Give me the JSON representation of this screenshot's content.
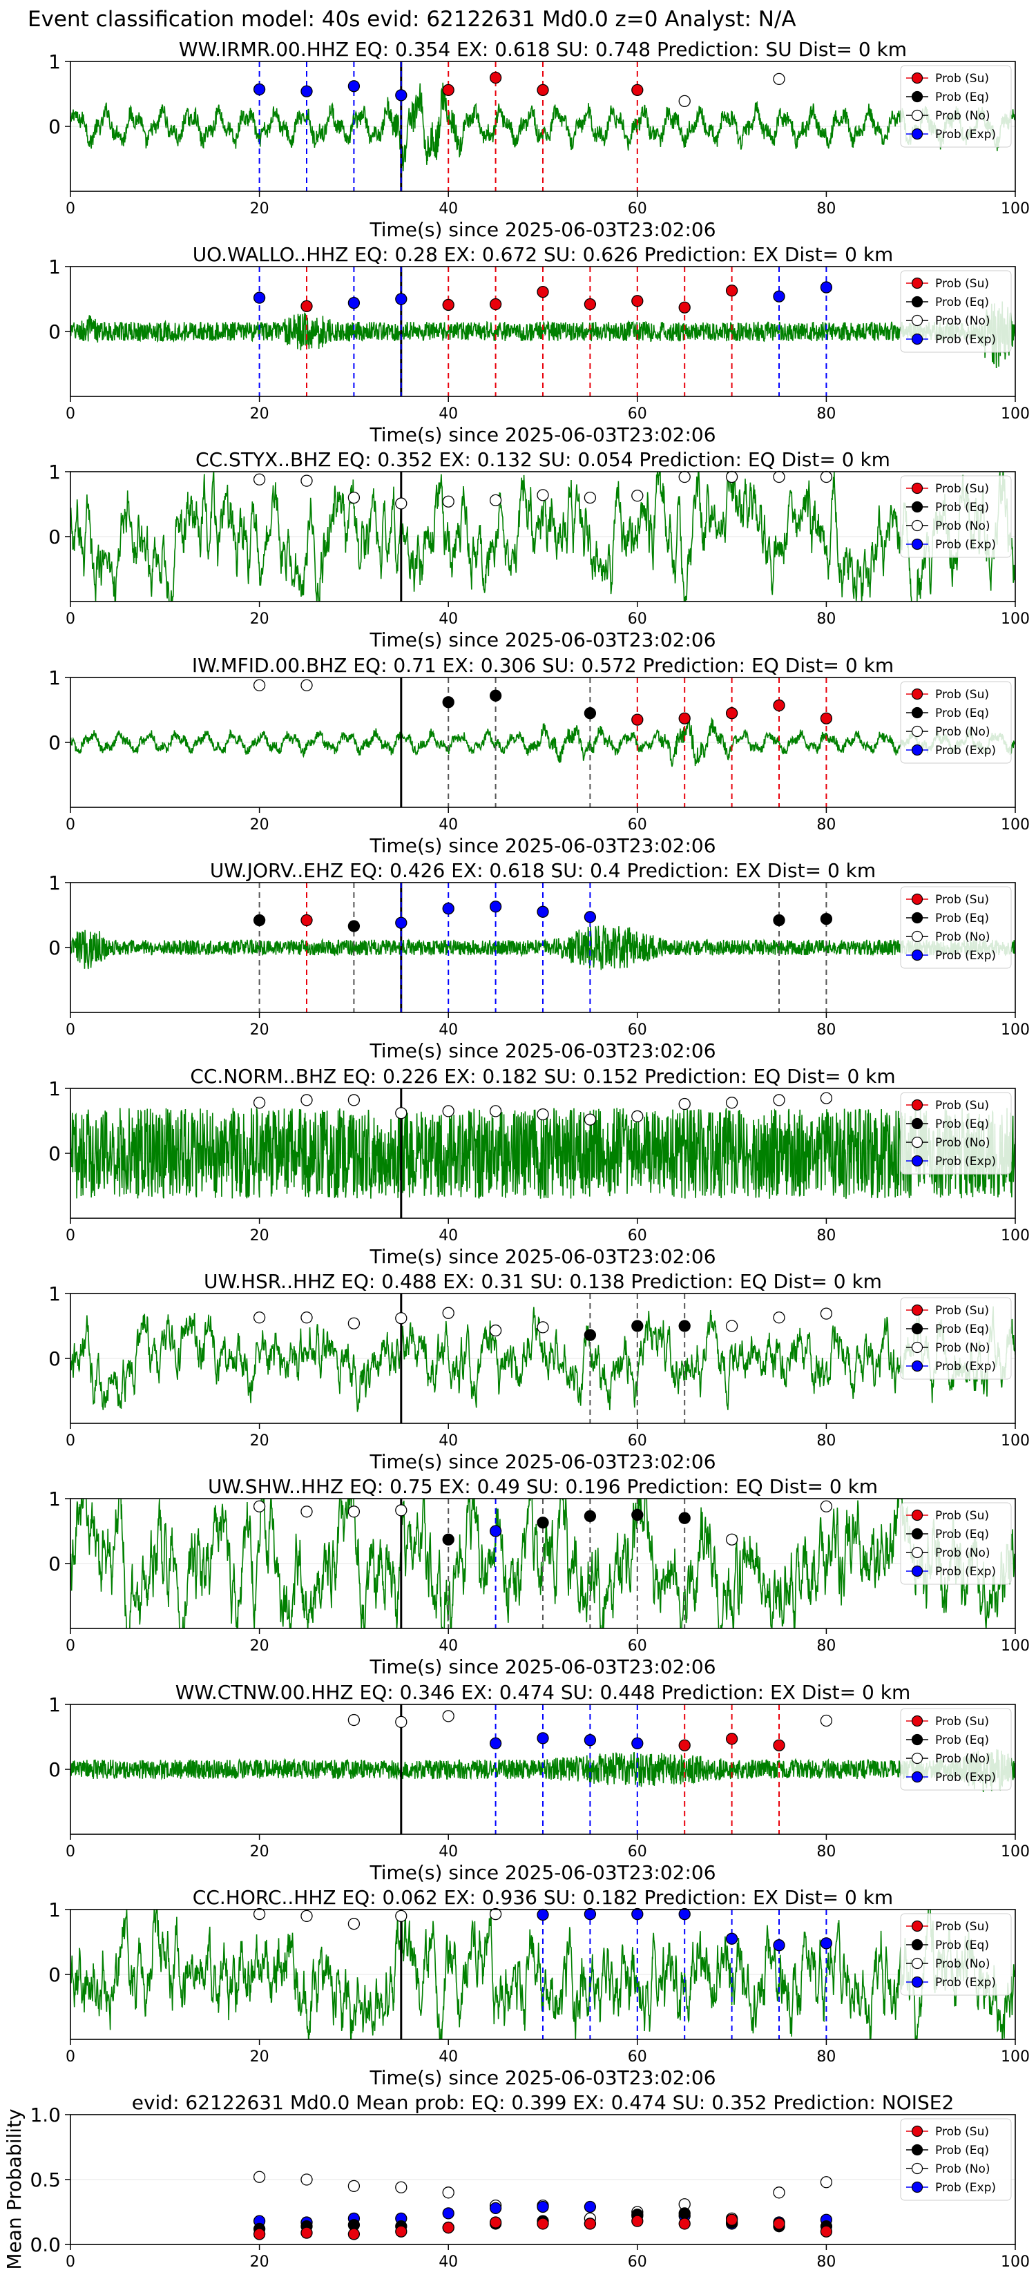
{
  "figure": {
    "title": "Event classification model: 40s evid: 62122631 Md0.0 z=0 Analyst: N/A",
    "xlabel": "Time(s) since 2025-06-03T23:02:06",
    "legend": [
      "Prob (Su)",
      "Prob (Eq)",
      "Prob (No)",
      "Prob (Exp)"
    ],
    "colors": {
      "su": "#e8000b",
      "eq": "#000000",
      "no": "#ffffff",
      "exp": "#0000ff",
      "wave": "#008000"
    }
  },
  "chart_data": [
    {
      "type": "line",
      "title": "WW.IRMR.00.HHZ   EQ: 0.354  EX: 0.618  SU: 0.748   Prediction: SU    Dist= 0 km",
      "amp": 0.35,
      "wclass": "sm",
      "bursts": [
        [
          33,
          42,
          2.2
        ]
      ],
      "xlim": [
        0,
        100
      ],
      "ylim": [
        -1,
        1
      ],
      "yticks": [
        0,
        1
      ],
      "xticks": [
        0,
        20,
        40,
        60,
        80,
        100
      ],
      "points": [
        [
          20,
          "exp",
          0.57
        ],
        [
          25,
          "exp",
          0.54
        ],
        [
          30,
          "exp",
          0.62
        ],
        [
          35,
          "exp",
          0.48
        ],
        [
          40,
          "su",
          0.56
        ],
        [
          45,
          "su",
          0.75
        ],
        [
          50,
          "su",
          0.56
        ],
        [
          60,
          "su",
          0.56
        ],
        [
          65,
          "no",
          0.39
        ],
        [
          75,
          "no",
          0.73
        ]
      ]
    },
    {
      "type": "line",
      "title": "UO.WALLO..HHZ   EQ: 0.28  EX: 0.672  SU: 0.626   Prediction: EX    Dist= 0 km",
      "amp": 0.15,
      "wclass": "hf",
      "bursts": [
        [
          1,
          3,
          1.8
        ],
        [
          22,
          28,
          2
        ],
        [
          96,
          100,
          4
        ]
      ],
      "xlim": [
        0,
        100
      ],
      "ylim": [
        -1,
        1
      ],
      "yticks": [
        0,
        1
      ],
      "xticks": [
        0,
        20,
        40,
        60,
        80,
        100
      ],
      "points": [
        [
          20,
          "exp",
          0.52
        ],
        [
          25,
          "su",
          0.39
        ],
        [
          30,
          "exp",
          0.44
        ],
        [
          35,
          "exp",
          0.5
        ],
        [
          40,
          "su",
          0.41
        ],
        [
          45,
          "su",
          0.42
        ],
        [
          50,
          "su",
          0.61
        ],
        [
          55,
          "su",
          0.42
        ],
        [
          60,
          "su",
          0.47
        ],
        [
          65,
          "su",
          0.37
        ],
        [
          70,
          "su",
          0.63
        ],
        [
          75,
          "exp",
          0.54
        ],
        [
          80,
          "exp",
          0.68
        ]
      ]
    },
    {
      "type": "line",
      "title": "CC.STYX..BHZ   EQ: 0.352  EX: 0.132  SU: 0.054   Prediction: EQ    Dist= 0 km",
      "amp": 0.6,
      "wclass": "lf",
      "bursts": [],
      "xlim": [
        0,
        100
      ],
      "ylim": [
        -1,
        1
      ],
      "yticks": [
        0,
        1
      ],
      "xticks": [
        0,
        20,
        40,
        60,
        80,
        100
      ],
      "points": [
        [
          20,
          "no",
          0.88
        ],
        [
          25,
          "no",
          0.86
        ],
        [
          30,
          "no",
          0.6
        ],
        [
          35,
          "no",
          0.51
        ],
        [
          40,
          "no",
          0.54
        ],
        [
          45,
          "no",
          0.56
        ],
        [
          50,
          "no",
          0.64
        ],
        [
          55,
          "no",
          0.6
        ],
        [
          60,
          "no",
          0.63
        ],
        [
          65,
          "no",
          0.92
        ],
        [
          70,
          "no",
          0.92
        ],
        [
          75,
          "no",
          0.92
        ],
        [
          80,
          "no",
          0.92
        ]
      ]
    },
    {
      "type": "line",
      "title": "IW.MFID.00.BHZ   EQ: 0.71  EX: 0.306  SU: 0.572   Prediction: EQ    Dist= 0 km",
      "amp": 0.2,
      "wclass": "sm",
      "bursts": [
        [
          48,
          58,
          1.6
        ],
        [
          62,
          70,
          2.4
        ]
      ],
      "xlim": [
        0,
        100
      ],
      "ylim": [
        -1,
        1
      ],
      "yticks": [
        0,
        1
      ],
      "xticks": [
        0,
        20,
        40,
        60,
        80,
        100
      ],
      "points": [
        [
          20,
          "no",
          0.88
        ],
        [
          25,
          "no",
          0.88
        ],
        [
          40,
          "eq",
          0.62
        ],
        [
          45,
          "eq",
          0.72
        ],
        [
          55,
          "eq",
          0.45
        ],
        [
          60,
          "su",
          0.35
        ],
        [
          65,
          "su",
          0.37
        ],
        [
          70,
          "su",
          0.45
        ],
        [
          75,
          "su",
          0.57
        ],
        [
          80,
          "su",
          0.37
        ]
      ]
    },
    {
      "type": "line",
      "title": "UW.JORV..EHZ   EQ: 0.426  EX: 0.618  SU: 0.4   Prediction: EX    Dist= 0 km",
      "amp": 0.12,
      "wclass": "hf",
      "bursts": [
        [
          0,
          4,
          3
        ],
        [
          51,
          63,
          3
        ]
      ],
      "xlim": [
        0,
        100
      ],
      "ylim": [
        -1,
        1
      ],
      "yticks": [
        0,
        1
      ],
      "xticks": [
        0,
        20,
        40,
        60,
        80,
        100
      ],
      "points": [
        [
          20,
          "eq",
          0.42
        ],
        [
          25,
          "su",
          0.42
        ],
        [
          30,
          "eq",
          0.33
        ],
        [
          35,
          "exp",
          0.38
        ],
        [
          40,
          "exp",
          0.6
        ],
        [
          45,
          "exp",
          0.63
        ],
        [
          50,
          "exp",
          0.55
        ],
        [
          55,
          "exp",
          0.47
        ],
        [
          75,
          "eq",
          0.42
        ],
        [
          80,
          "eq",
          0.44
        ]
      ]
    },
    {
      "type": "line",
      "title": "CC.NORM..BHZ   EQ: 0.226  EX: 0.182  SU: 0.152   Prediction: EQ    Dist= 0 km",
      "amp": 0.7,
      "wclass": "hf",
      "bursts": [],
      "xlim": [
        0,
        100
      ],
      "ylim": [
        -1,
        1
      ],
      "yticks": [
        0,
        1
      ],
      "xticks": [
        0,
        20,
        40,
        60,
        80,
        100
      ],
      "points": [
        [
          20,
          "no",
          0.78
        ],
        [
          25,
          "no",
          0.82
        ],
        [
          30,
          "no",
          0.82
        ],
        [
          35,
          "no",
          0.62
        ],
        [
          40,
          "no",
          0.65
        ],
        [
          45,
          "no",
          0.65
        ],
        [
          50,
          "no",
          0.6
        ],
        [
          55,
          "no",
          0.52
        ],
        [
          60,
          "no",
          0.57
        ],
        [
          65,
          "no",
          0.76
        ],
        [
          70,
          "no",
          0.78
        ],
        [
          75,
          "no",
          0.82
        ],
        [
          80,
          "no",
          0.85
        ]
      ]
    },
    {
      "type": "line",
      "title": "UW.HSR..HHZ   EQ: 0.488  EX: 0.31  SU: 0.138   Prediction: EQ    Dist= 0 km",
      "amp": 0.45,
      "wclass": "lf",
      "bursts": [],
      "xlim": [
        0,
        100
      ],
      "ylim": [
        -1,
        1
      ],
      "yticks": [
        0,
        1
      ],
      "xticks": [
        0,
        20,
        40,
        60,
        80,
        100
      ],
      "points": [
        [
          20,
          "no",
          0.63
        ],
        [
          25,
          "no",
          0.63
        ],
        [
          30,
          "no",
          0.54
        ],
        [
          35,
          "no",
          0.62
        ],
        [
          40,
          "no",
          0.7
        ],
        [
          45,
          "no",
          0.43
        ],
        [
          50,
          "no",
          0.48
        ],
        [
          55,
          "eq",
          0.36
        ],
        [
          60,
          "eq",
          0.5
        ],
        [
          65,
          "eq",
          0.5
        ],
        [
          70,
          "no",
          0.5
        ],
        [
          75,
          "no",
          0.63
        ],
        [
          80,
          "no",
          0.69
        ]
      ]
    },
    {
      "type": "line",
      "title": "UW.SHW..HHZ   EQ: 0.75  EX: 0.49  SU: 0.196   Prediction: EQ    Dist= 0 km",
      "amp": 0.75,
      "wclass": "lf",
      "bursts": [],
      "xlim": [
        0,
        100
      ],
      "ylim": [
        -1,
        1
      ],
      "yticks": [
        0,
        1
      ],
      "xticks": [
        0,
        20,
        40,
        60,
        80,
        100
      ],
      "points": [
        [
          20,
          "no",
          0.88
        ],
        [
          25,
          "no",
          0.8
        ],
        [
          30,
          "no",
          0.8
        ],
        [
          35,
          "no",
          0.82
        ],
        [
          40,
          "eq",
          0.37
        ],
        [
          45,
          "exp",
          0.5
        ],
        [
          50,
          "eq",
          0.63
        ],
        [
          55,
          "eq",
          0.73
        ],
        [
          60,
          "eq",
          0.75
        ],
        [
          65,
          "eq",
          0.7
        ],
        [
          70,
          "no",
          0.37
        ],
        [
          80,
          "no",
          0.88
        ]
      ]
    },
    {
      "type": "line",
      "title": "WW.CTNW.00.HHZ   EQ: 0.346  EX: 0.474  SU: 0.448   Prediction: EX    Dist= 0 km",
      "amp": 0.15,
      "wclass": "hf",
      "bursts": [
        [
          50,
          70,
          1.8
        ],
        [
          94,
          100,
          2.5
        ]
      ],
      "xlim": [
        0,
        100
      ],
      "ylim": [
        -1,
        1
      ],
      "yticks": [
        0,
        1
      ],
      "xticks": [
        0,
        20,
        40,
        60,
        80,
        100
      ],
      "points": [
        [
          30,
          "no",
          0.76
        ],
        [
          35,
          "no",
          0.73
        ],
        [
          40,
          "no",
          0.82
        ],
        [
          45,
          "exp",
          0.4
        ],
        [
          50,
          "exp",
          0.48
        ],
        [
          55,
          "exp",
          0.45
        ],
        [
          60,
          "exp",
          0.4
        ],
        [
          65,
          "su",
          0.37
        ],
        [
          70,
          "su",
          0.47
        ],
        [
          75,
          "su",
          0.37
        ],
        [
          80,
          "no",
          0.75
        ]
      ]
    },
    {
      "type": "line",
      "title": "CC.HORC..HHZ   EQ: 0.062  EX: 0.936  SU: 0.182   Prediction: EX    Dist= 0 km",
      "amp": 0.65,
      "wclass": "lf",
      "bursts": [],
      "xlim": [
        0,
        100
      ],
      "ylim": [
        -1,
        1
      ],
      "yticks": [
        0,
        1
      ],
      "xticks": [
        0,
        20,
        40,
        60,
        80,
        100
      ],
      "points": [
        [
          20,
          "no",
          0.93
        ],
        [
          25,
          "no",
          0.9
        ],
        [
          30,
          "no",
          0.78
        ],
        [
          35,
          "no",
          0.9
        ],
        [
          45,
          "no",
          0.93
        ],
        [
          50,
          "exp",
          0.92
        ],
        [
          55,
          "exp",
          0.93
        ],
        [
          60,
          "exp",
          0.93
        ],
        [
          65,
          "exp",
          0.93
        ],
        [
          70,
          "exp",
          0.55
        ],
        [
          75,
          "exp",
          0.45
        ],
        [
          80,
          "exp",
          0.48
        ]
      ]
    },
    {
      "type": "scatter",
      "title": "evid: 62122631   Md0.0   Mean prob:   EQ: 0.399  EX: 0.474  SU: 0.352   Prediction: NOISE2",
      "ylabel": "Mean Probability",
      "xlim": [
        0,
        100
      ],
      "ylim": [
        0,
        1
      ],
      "yticks": [
        0.0,
        0.5,
        1.0
      ],
      "xticks": [
        0,
        20,
        40,
        60,
        80,
        100
      ],
      "series": [
        {
          "cls": "no",
          "x": [
            20,
            25,
            30,
            35,
            40,
            45,
            50,
            55,
            60,
            65,
            70,
            75,
            80
          ],
          "y": [
            0.52,
            0.5,
            0.45,
            0.44,
            0.4,
            0.3,
            0.3,
            0.2,
            0.25,
            0.31,
            0.2,
            0.4,
            0.48
          ]
        },
        {
          "cls": "exp",
          "x": [
            20,
            25,
            30,
            35,
            40,
            45,
            50,
            55,
            60,
            65,
            70,
            75,
            80
          ],
          "y": [
            0.18,
            0.17,
            0.2,
            0.2,
            0.24,
            0.28,
            0.29,
            0.29,
            0.22,
            0.22,
            0.16,
            0.17,
            0.19
          ]
        },
        {
          "cls": "eq",
          "x": [
            20,
            25,
            30,
            35,
            40,
            45,
            50,
            55,
            60,
            65,
            70,
            75,
            80
          ],
          "y": [
            0.12,
            0.14,
            0.15,
            0.14,
            0.13,
            0.16,
            0.18,
            0.16,
            0.23,
            0.24,
            0.17,
            0.14,
            0.14
          ]
        },
        {
          "cls": "su",
          "x": [
            20,
            25,
            30,
            35,
            40,
            45,
            50,
            55,
            60,
            65,
            70,
            75,
            80
          ],
          "y": [
            0.08,
            0.09,
            0.08,
            0.1,
            0.13,
            0.17,
            0.16,
            0.16,
            0.18,
            0.16,
            0.19,
            0.16,
            0.1
          ]
        }
      ]
    }
  ]
}
